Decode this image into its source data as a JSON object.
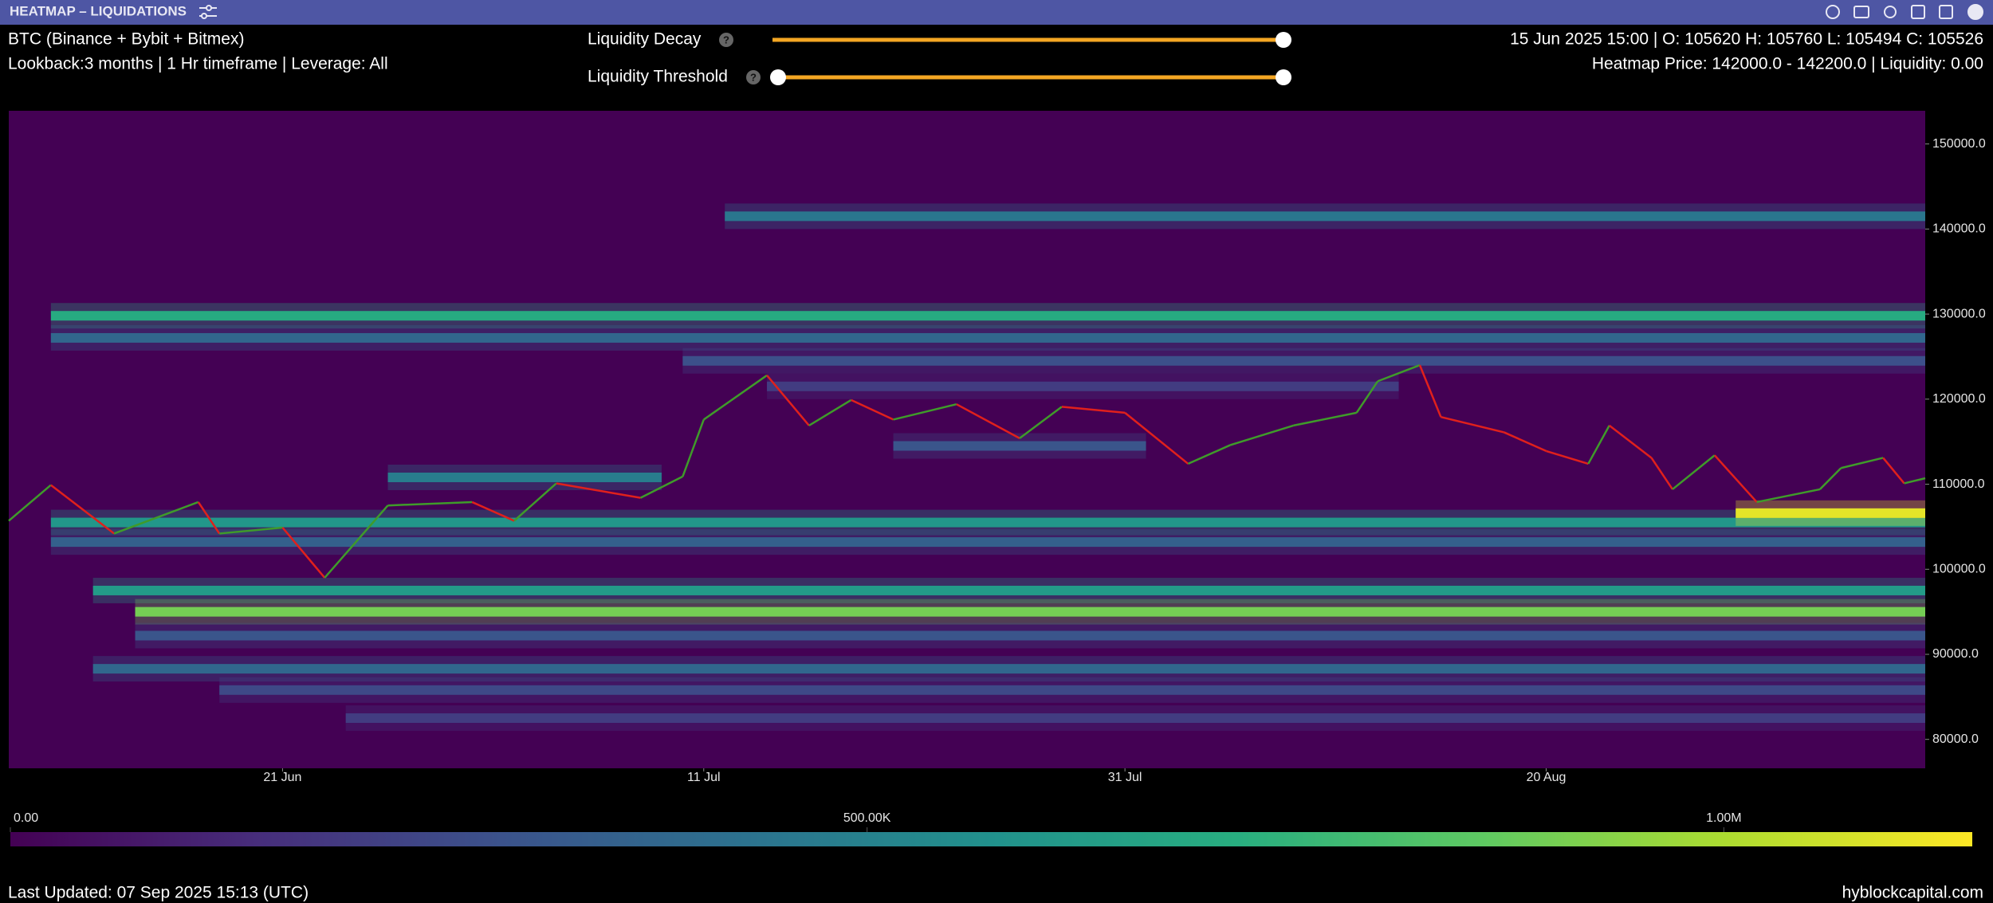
{
  "title_bar": {
    "title": "HEATMAP – LIQUIDATIONS"
  },
  "header": {
    "asset": "BTC (Binance + Bybit + Bitmex)",
    "settings": "Lookback:3 months | 1 Hr timeframe | Leverage: All",
    "ohlc": "15 Jun 2025 15:00 | O: 105620 H: 105760 L: 105494 C: 105526",
    "heatmap_info": "Heatmap Price: 142000.0 - 142200.0 | Liquidity: 0.00"
  },
  "controls": {
    "decay_label": "Liquidity Decay",
    "threshold_label": "Liquidity Threshold",
    "help": "?"
  },
  "chart_data": {
    "type": "heatmap",
    "xlim": [
      "2025-06-08",
      "2025-09-07"
    ],
    "xticks": [
      {
        "value": "2025-06-21",
        "label": "21 Jun"
      },
      {
        "value": "2025-07-11",
        "label": "11 Jul"
      },
      {
        "value": "2025-07-31",
        "label": "31 Jul"
      },
      {
        "value": "2025-08-20",
        "label": "20 Aug"
      }
    ],
    "ylim": [
      76600,
      153900
    ],
    "yticks": [
      {
        "value": 80000,
        "label": "80000.0"
      },
      {
        "value": 90000,
        "label": "90000.0"
      },
      {
        "value": 100000,
        "label": "100000.0"
      },
      {
        "value": 110000,
        "label": "110000.0"
      },
      {
        "value": 120000,
        "label": "120000.0"
      },
      {
        "value": 130000,
        "label": "130000.0"
      },
      {
        "value": 140000,
        "label": "140000.0"
      },
      {
        "value": 150000,
        "label": "150000.0"
      }
    ],
    "background": "#440154",
    "bands": [
      {
        "price": 141500,
        "liquidity": 450000,
        "start": "2025-07-12",
        "end": "2025-09-07"
      },
      {
        "price": 129800,
        "liquidity": 700000,
        "start": "2025-06-10",
        "end": "2025-09-07"
      },
      {
        "price": 127200,
        "liquidity": 380000,
        "start": "2025-06-10",
        "end": "2025-09-07"
      },
      {
        "price": 124500,
        "liquidity": 280000,
        "start": "2025-07-10",
        "end": "2025-09-07"
      },
      {
        "price": 121500,
        "liquidity": 200000,
        "start": "2025-07-14",
        "end": "2025-08-13"
      },
      {
        "price": 114500,
        "liquidity": 300000,
        "start": "2025-07-20",
        "end": "2025-08-01"
      },
      {
        "price": 110800,
        "liquidity": 480000,
        "start": "2025-06-26",
        "end": "2025-07-09"
      },
      {
        "price": 105500,
        "liquidity": 600000,
        "start": "2025-06-10",
        "end": "2025-09-07"
      },
      {
        "price": 103200,
        "liquidity": 350000,
        "start": "2025-06-10",
        "end": "2025-09-07"
      },
      {
        "price": 97500,
        "liquidity": 620000,
        "start": "2025-06-12",
        "end": "2025-09-07"
      },
      {
        "price": 95000,
        "liquidity": 900000,
        "start": "2025-06-14",
        "end": "2025-09-07"
      },
      {
        "price": 92200,
        "liquidity": 300000,
        "start": "2025-06-14",
        "end": "2025-09-07"
      },
      {
        "price": 88300,
        "liquidity": 380000,
        "start": "2025-06-12",
        "end": "2025-09-07"
      },
      {
        "price": 85800,
        "liquidity": 250000,
        "start": "2025-06-18",
        "end": "2025-09-07"
      },
      {
        "price": 82500,
        "liquidity": 200000,
        "start": "2025-06-24",
        "end": "2025-09-07"
      },
      {
        "price": 106600,
        "liquidity": 1100000,
        "start": "2025-08-29",
        "end": "2025-09-07"
      }
    ],
    "price": {
      "up_color": "#3f9b2a",
      "down_color": "#e0201c",
      "x": [
        "2025-06-08",
        "2025-06-10",
        "2025-06-13",
        "2025-06-17",
        "2025-06-18",
        "2025-06-21",
        "2025-06-23",
        "2025-06-26",
        "2025-06-30",
        "2025-07-02",
        "2025-07-04",
        "2025-07-08",
        "2025-07-10",
        "2025-07-11",
        "2025-07-14",
        "2025-07-16",
        "2025-07-18",
        "2025-07-20",
        "2025-07-23",
        "2025-07-26",
        "2025-07-28",
        "2025-07-31",
        "2025-08-03",
        "2025-08-05",
        "2025-08-08",
        "2025-08-11",
        "2025-08-12",
        "2025-08-14",
        "2025-08-15",
        "2025-08-18",
        "2025-08-20",
        "2025-08-22",
        "2025-08-23",
        "2025-08-25",
        "2025-08-26",
        "2025-08-28",
        "2025-08-30",
        "2025-09-02",
        "2025-09-03",
        "2025-09-05",
        "2025-09-06",
        "2025-09-07"
      ],
      "values": [
        105700,
        109900,
        104200,
        107900,
        104200,
        104900,
        99000,
        107500,
        107900,
        105700,
        110100,
        108400,
        110900,
        117600,
        122800,
        116900,
        119900,
        117600,
        119400,
        115400,
        119100,
        118400,
        112400,
        114600,
        116900,
        118400,
        122100,
        124000,
        117900,
        116100,
        113900,
        112400,
        116900,
        113100,
        109400,
        113400,
        107900,
        109400,
        111900,
        113100,
        110100,
        110700
      ]
    },
    "colorbar": {
      "lim": [
        0,
        1145000
      ],
      "ticks": [
        {
          "value": 0,
          "label": "0.00"
        },
        {
          "value": 500000,
          "label": "500.00K"
        },
        {
          "value": 1000000,
          "label": "1.00M"
        }
      ],
      "colors": [
        "#440154",
        "#472d7b",
        "#3b528b",
        "#2c728e",
        "#21918c",
        "#28ae80",
        "#5ec962",
        "#addc30",
        "#fde725"
      ]
    }
  },
  "footer": {
    "updated": "Last Updated: 07 Sep 2025 15:13 (UTC)",
    "site": "hyblockcapital.com"
  }
}
